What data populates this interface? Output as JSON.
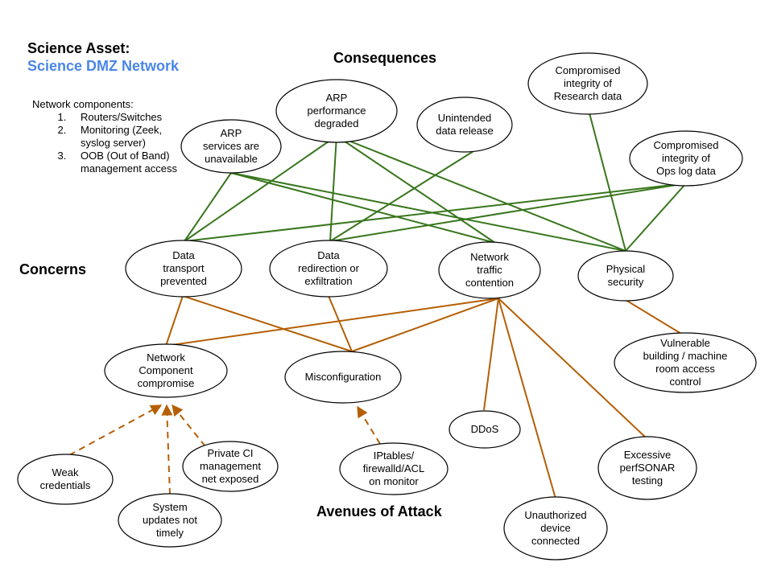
{
  "header": {
    "title": "Science Asset:",
    "subtitle": "Science DMZ Network"
  },
  "headings": {
    "consequences": "Consequences",
    "concerns": "Concerns",
    "avenues": "Avenues of Attack"
  },
  "components": {
    "intro": "Network components:",
    "items": [
      "Routers/Switches",
      "Monitoring (Zeek, syslog server)",
      "OOB (Out of Band) management access"
    ]
  },
  "colors": {
    "consequence_links": "#38761d",
    "attack_links": "#b45f06",
    "subtitle": "#4a86e8"
  },
  "nodes": {
    "arp_services": {
      "lines": [
        "ARP",
        "services are",
        "unavailable"
      ]
    },
    "arp_performance": {
      "lines": [
        "ARP",
        "performance",
        "degraded"
      ]
    },
    "unintended_release": {
      "lines": [
        "Unintended",
        "data release"
      ]
    },
    "integrity_research": {
      "lines": [
        "Compromised",
        "integrity of",
        "Research data"
      ]
    },
    "integrity_ops": {
      "lines": [
        "Compromised",
        "integrity of",
        "Ops log data"
      ]
    },
    "data_transport": {
      "lines": [
        "Data",
        "transport",
        "prevented"
      ]
    },
    "data_redirection": {
      "lines": [
        "Data",
        "redirection or",
        "exfiltration"
      ]
    },
    "network_contention": {
      "lines": [
        "Network",
        "traffic",
        "contention"
      ]
    },
    "physical_security": {
      "lines": [
        "Physical",
        "security"
      ]
    },
    "component_compromise": {
      "lines": [
        "Network",
        "Component",
        "compromise"
      ]
    },
    "misconfiguration": {
      "lines": [
        "Misconfiguration"
      ]
    },
    "vulnerable_building": {
      "lines": [
        "Vulnerable",
        "building / machine",
        "room access",
        "control"
      ]
    },
    "ddos": {
      "lines": [
        "DDoS"
      ]
    },
    "excessive_perfsonar": {
      "lines": [
        "Excessive",
        "perfSONAR",
        "testing"
      ]
    },
    "weak_credentials": {
      "lines": [
        "Weak",
        "credentials"
      ]
    },
    "private_ci": {
      "lines": [
        "Private CI",
        "management",
        "net exposed"
      ]
    },
    "system_updates": {
      "lines": [
        "System",
        "updates not",
        "timely"
      ]
    },
    "iptables": {
      "lines": [
        "IPtables/",
        "firewalld/ACL",
        "on monitor"
      ]
    },
    "unauthorized_device": {
      "lines": [
        "Unauthorized",
        "device",
        "connected"
      ]
    }
  },
  "links": {
    "consequence": [
      [
        "data_transport",
        "arp_services"
      ],
      [
        "data_transport",
        "arp_performance"
      ],
      [
        "data_transport",
        "integrity_ops"
      ],
      [
        "data_redirection",
        "arp_performance"
      ],
      [
        "data_redirection",
        "unintended_release"
      ],
      [
        "data_redirection",
        "integrity_ops"
      ],
      [
        "network_contention",
        "arp_services"
      ],
      [
        "network_contention",
        "arp_performance"
      ],
      [
        "physical_security",
        "arp_services"
      ],
      [
        "physical_security",
        "arp_performance"
      ],
      [
        "physical_security",
        "integrity_research"
      ],
      [
        "physical_security",
        "integrity_ops"
      ]
    ],
    "attack": [
      [
        "component_compromise",
        "data_transport"
      ],
      [
        "component_compromise",
        "network_contention"
      ],
      [
        "misconfiguration",
        "data_transport"
      ],
      [
        "misconfiguration",
        "data_redirection"
      ],
      [
        "misconfiguration",
        "network_contention"
      ],
      [
        "ddos",
        "network_contention"
      ],
      [
        "excessive_perfsonar",
        "network_contention"
      ],
      [
        "unauthorized_device",
        "network_contention"
      ],
      [
        "vulnerable_building",
        "physical_security"
      ]
    ],
    "dashed": [
      [
        "weak_credentials",
        "component_compromise"
      ],
      [
        "system_updates",
        "component_compromise"
      ],
      [
        "private_ci",
        "component_compromise"
      ],
      [
        "iptables",
        "misconfiguration"
      ]
    ]
  }
}
